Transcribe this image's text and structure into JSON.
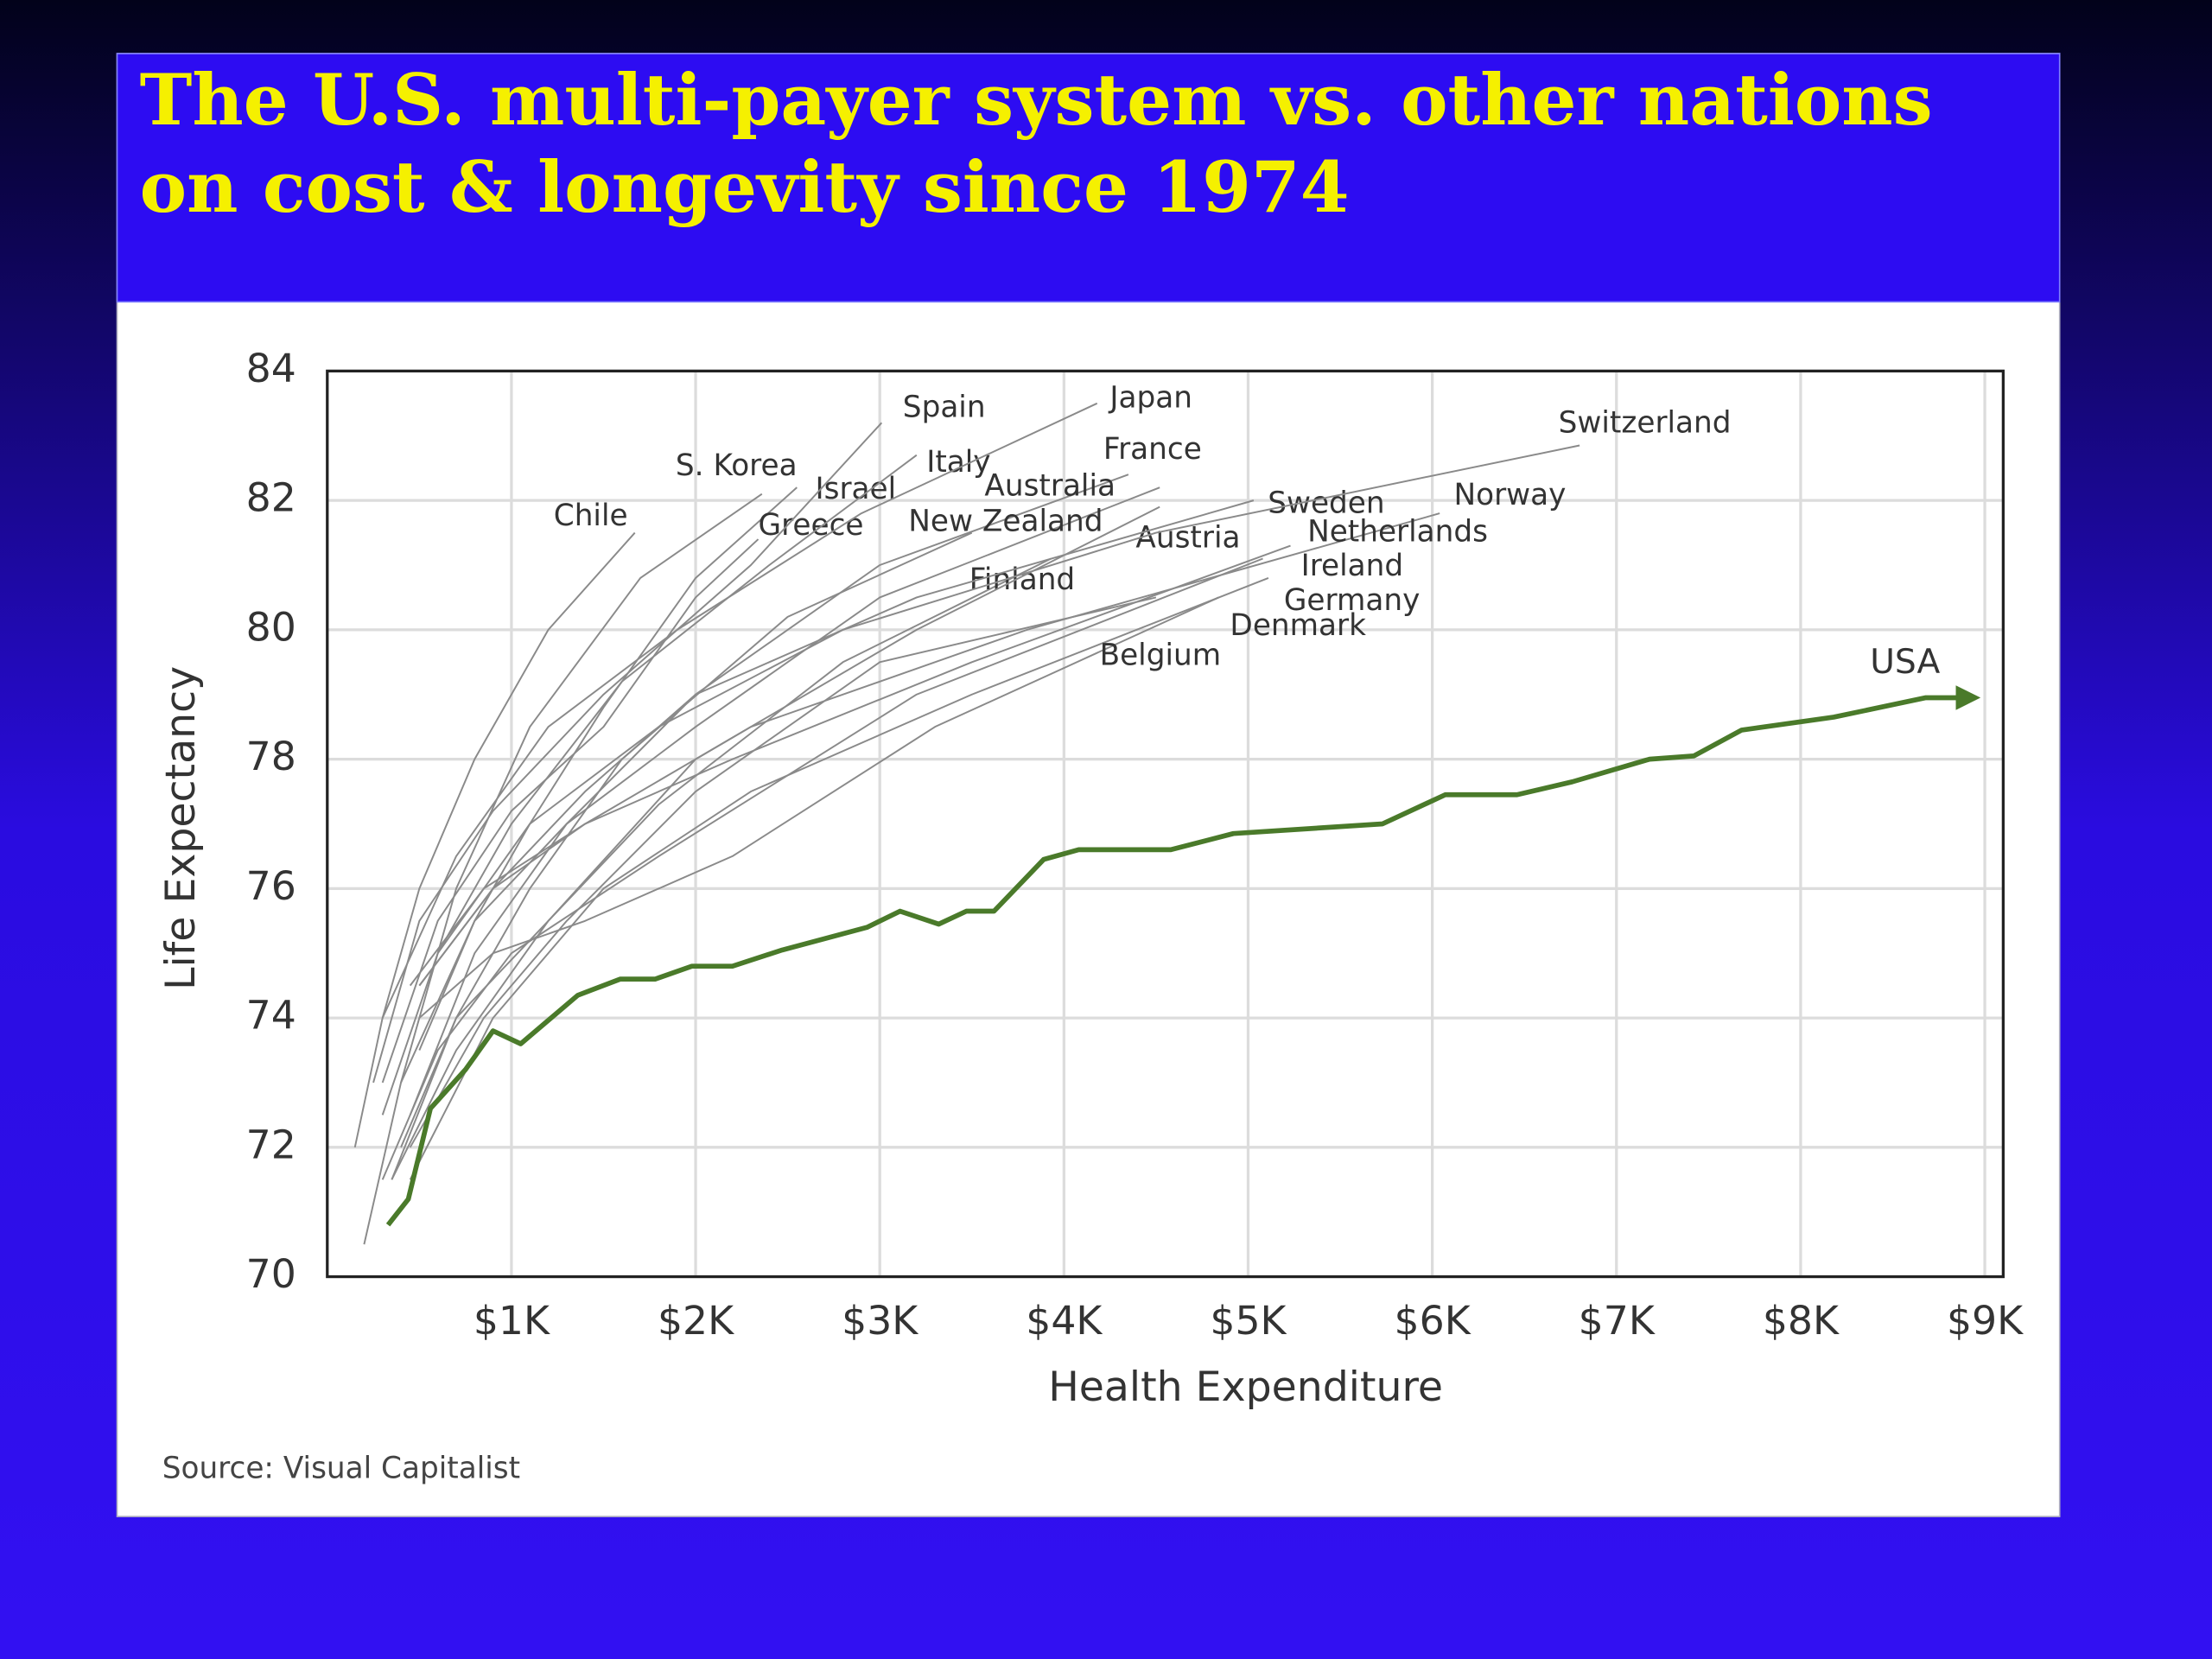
{
  "chart_data": {
    "type": "line",
    "title": "The U.S. multi-payer system vs. other nations on cost & longevity since 1974",
    "title_lines": [
      "The U.S. multi-payer system vs. other nations",
      "on cost & longevity since 1974"
    ],
    "x_label": "Health Expenditure",
    "y_label": "Life Expectancy",
    "source": "Source: Visual Capitalist",
    "xlim": [
      0,
      9100
    ],
    "ylim": [
      70,
      84
    ],
    "xticks": [
      {
        "value": 1000,
        "label": "$1K"
      },
      {
        "value": 2000,
        "label": "$2K"
      },
      {
        "value": 3000,
        "label": "$3K"
      },
      {
        "value": 4000,
        "label": "$4K"
      },
      {
        "value": 5000,
        "label": "$5K"
      },
      {
        "value": 6000,
        "label": "$6K"
      },
      {
        "value": 7000,
        "label": "$7K"
      },
      {
        "value": 8000,
        "label": "$8K"
      },
      {
        "value": 9000,
        "label": "$9K"
      }
    ],
    "yticks": [
      70,
      72,
      74,
      76,
      78,
      80,
      82,
      84
    ],
    "grid": true,
    "series": [
      {
        "name": "Chile",
        "color": "#8a8a8a",
        "x": [
          150,
          300,
          500,
          800,
          1200,
          1670
        ],
        "values": [
          72.0,
          74.0,
          76.0,
          78.0,
          80.0,
          81.5
        ]
      },
      {
        "name": "S. Korea",
        "color": "#8a8a8a",
        "x": [
          200,
          400,
          700,
          1100,
          1700,
          2360
        ],
        "values": [
          70.5,
          73.0,
          76.0,
          78.5,
          80.8,
          82.1
        ]
      },
      {
        "name": "Israel",
        "color": "#8a8a8a",
        "x": [
          500,
          800,
          1100,
          1500,
          2000,
          2550
        ],
        "values": [
          73.5,
          75.5,
          77.0,
          78.8,
          80.8,
          82.2
        ]
      },
      {
        "name": "Greece",
        "color": "#8a8a8a",
        "x": [
          300,
          600,
          1000,
          1500,
          2000,
          2340
        ],
        "values": [
          73.0,
          75.5,
          77.2,
          78.5,
          80.5,
          81.4
        ]
      },
      {
        "name": "Spain",
        "color": "#8a8a8a",
        "x": [
          250,
          500,
          900,
          1500,
          2300,
          3010
        ],
        "values": [
          73.0,
          75.5,
          77.2,
          79.0,
          81.0,
          83.2
        ]
      },
      {
        "name": "Italy",
        "color": "#8a8a8a",
        "x": [
          300,
          600,
          1000,
          1600,
          2400,
          3200
        ],
        "values": [
          72.5,
          75.0,
          77.0,
          79.2,
          81.0,
          82.7
        ]
      },
      {
        "name": "Japan",
        "color": "#8a8a8a",
        "x": [
          300,
          700,
          1200,
          1900,
          2900,
          4180
        ],
        "values": [
          74.0,
          76.5,
          78.5,
          80.0,
          81.8,
          83.5
        ]
      },
      {
        "name": "France",
        "color": "#8a8a8a",
        "x": [
          400,
          800,
          1300,
          2000,
          3000,
          4520
        ],
        "values": [
          73.0,
          75.5,
          77.0,
          78.5,
          80.5,
          82.2
        ]
      },
      {
        "name": "Australia",
        "color": "#8a8a8a",
        "x": [
          450,
          800,
          1300,
          2000,
          3000,
          4350
        ],
        "values": [
          72.5,
          75.0,
          77.0,
          79.0,
          81.0,
          82.4
        ]
      },
      {
        "name": "New Zealand",
        "color": "#8a8a8a",
        "x": [
          400,
          700,
          1100,
          1600,
          2500,
          3500
        ],
        "values": [
          72.0,
          74.0,
          76.0,
          78.0,
          80.2,
          81.5
        ]
      },
      {
        "name": "Finland",
        "color": "#8a8a8a",
        "x": [
          350,
          700,
          1200,
          1800,
          2800,
          3930
        ],
        "values": [
          71.5,
          74.0,
          75.5,
          77.3,
          79.5,
          81.1
        ]
      },
      {
        "name": "Austria",
        "color": "#8a8a8a",
        "x": [
          350,
          700,
          1200,
          2000,
          3200,
          4520
        ],
        "values": [
          71.5,
          73.5,
          75.5,
          78.0,
          80.0,
          81.9
        ]
      },
      {
        "name": "Sweden",
        "color": "#8a8a8a",
        "x": [
          500,
          900,
          1400,
          2000,
          3200,
          5030
        ],
        "values": [
          74.5,
          76.0,
          77.5,
          79.0,
          80.5,
          82.0
        ]
      },
      {
        "name": "Switzerland",
        "color": "#8a8a8a",
        "x": [
          600,
          1100,
          1800,
          2800,
          4500,
          6800
        ],
        "values": [
          75.0,
          77.0,
          78.5,
          80.0,
          81.5,
          82.85
        ]
      },
      {
        "name": "Norway",
        "color": "#8a8a8a",
        "x": [
          450,
          850,
          1400,
          2300,
          3800,
          6040
        ],
        "values": [
          74.5,
          76.0,
          77.0,
          78.5,
          80.0,
          81.8
        ]
      },
      {
        "name": "Netherlands",
        "color": "#8a8a8a",
        "x": [
          500,
          900,
          1400,
          2200,
          3500,
          5230
        ],
        "values": [
          74.5,
          76.0,
          77.0,
          78.0,
          79.5,
          81.3
        ]
      },
      {
        "name": "Ireland",
        "color": "#8a8a8a",
        "x": [
          300,
          600,
          1000,
          1800,
          3200,
          5080
        ],
        "values": [
          71.5,
          73.5,
          75.0,
          76.5,
          79.0,
          81.1
        ]
      },
      {
        "name": "Germany",
        "color": "#8a8a8a",
        "x": [
          450,
          900,
          1500,
          2300,
          3500,
          5110
        ],
        "values": [
          71.5,
          74.0,
          76.0,
          77.5,
          79.0,
          80.8
        ]
      },
      {
        "name": "Denmark",
        "color": "#8a8a8a",
        "x": [
          500,
          900,
          1400,
          2200,
          3300,
          4840
        ],
        "values": [
          74.0,
          75.0,
          75.5,
          76.5,
          78.5,
          80.5
        ]
      },
      {
        "name": "Belgium",
        "color": "#8a8a8a",
        "x": [
          450,
          850,
          1300,
          2000,
          3000,
          4500
        ],
        "values": [
          72.0,
          74.0,
          75.5,
          77.5,
          79.5,
          80.5
        ]
      },
      {
        "name": "USA",
        "color": "#4a7a2a",
        "x": [
          330,
          440,
          560,
          750,
          900,
          1050,
          1360,
          1590,
          1780,
          1980,
          2200,
          2470,
          2930,
          3110,
          3320,
          3470,
          3620,
          3890,
          4080,
          4580,
          4920,
          5730,
          6070,
          6460,
          6760,
          7180,
          7420,
          7680,
          8180,
          8680,
          8950
        ],
        "values": [
          70.8,
          71.2,
          72.6,
          73.2,
          73.8,
          73.6,
          74.35,
          74.6,
          74.6,
          74.8,
          74.8,
          75.05,
          75.4,
          75.65,
          75.45,
          75.65,
          75.65,
          76.45,
          76.6,
          76.6,
          76.85,
          77.0,
          77.45,
          77.45,
          77.65,
          78.0,
          78.05,
          78.45,
          78.65,
          78.95,
          78.95
        ]
      }
    ]
  }
}
